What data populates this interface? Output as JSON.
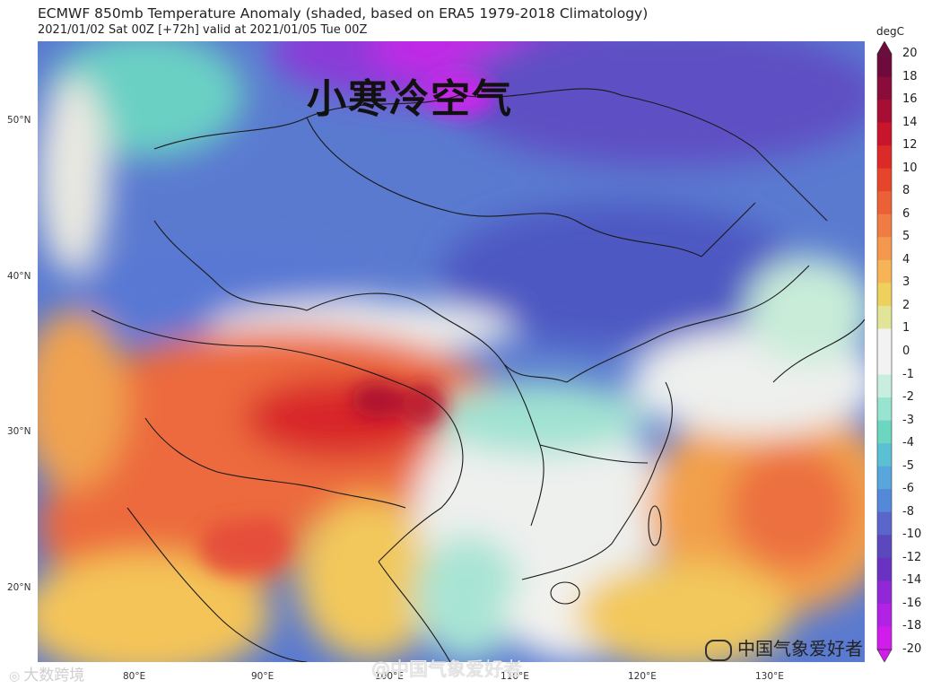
{
  "header": {
    "title": "ECMWF 850mb Temperature Anomaly (shaded, based on ERA5 1979-2018 Climatology)",
    "subtitle": "2021/01/02 Sat 00Z [+72h] valid at 2021/01/05 Tue 00Z"
  },
  "map": {
    "overlay_label": "小寒冷空气",
    "lat_labels": [
      "50°N",
      "40°N",
      "30°N",
      "20°N"
    ],
    "lon_labels": [
      "80°E",
      "90°E",
      "100°E",
      "110°E",
      "120°E",
      "130°E"
    ]
  },
  "colorbar": {
    "unit": "degC",
    "ticks": [
      "20",
      "18",
      "16",
      "14",
      "12",
      "10",
      "8",
      "6",
      "5",
      "4",
      "3",
      "2",
      "1",
      "0",
      "-1",
      "-2",
      "-3",
      "-4",
      "-5",
      "-6",
      "-8",
      "-10",
      "-12",
      "-14",
      "-16",
      "-18",
      "-20"
    ],
    "colors": [
      "#6e0a3c",
      "#8a0c3a",
      "#a80e33",
      "#c8152c",
      "#dc2a28",
      "#e6452c",
      "#ec6038",
      "#f07c44",
      "#f4984e",
      "#f6b456",
      "#eed05c",
      "#e2e49a",
      "#f2f2f2",
      "#f2f2f2",
      "#c8eee0",
      "#98e4d0",
      "#6cd6c0",
      "#5cc0d4",
      "#58a6dc",
      "#5488d8",
      "#5a66cc",
      "#5a48bc",
      "#6a32c2",
      "#9028d8",
      "#b222e6",
      "#d21cee"
    ]
  },
  "watermarks": {
    "left": "大数跨境",
    "center": "@中国气象爱好者",
    "right": "中国气象爱好者"
  }
}
